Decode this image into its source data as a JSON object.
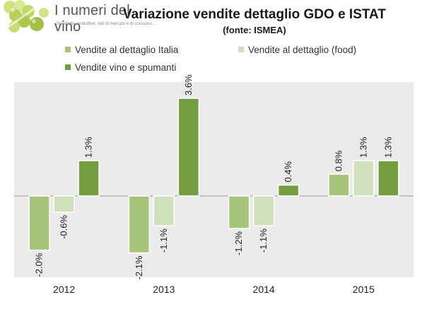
{
  "logo": {
    "title": "I numeri del vino",
    "subtitle": "Statistiche produttive, dati di mercato e di consumo..."
  },
  "colors": {
    "series": [
      "#a6c57a",
      "#cfe0bd",
      "#739d3e"
    ],
    "plot_background": "#ebebeb",
    "baseline": "#999999"
  },
  "chart_data": {
    "type": "bar",
    "title": "Variazione vendite dettaglio GDO e ISTAT",
    "subtitle": "(fonte: ISMEA)",
    "categories": [
      "2012",
      "2013",
      "2014",
      "2015"
    ],
    "series": [
      {
        "name": "Vendite al dettaglio Italia",
        "values": [
          -2.0,
          -2.1,
          -1.2,
          0.8
        ]
      },
      {
        "name": "Vendite al dettaglio (food)",
        "values": [
          -0.6,
          -1.1,
          -1.1,
          1.3
        ]
      },
      {
        "name": "Vendite vino e spumanti",
        "values": [
          1.3,
          3.6,
          0.4,
          1.3
        ]
      }
    ],
    "data_labels": [
      [
        "-2.0%",
        "-2.1%",
        "-1.2%",
        "0.8%"
      ],
      [
        "-0.6%",
        "-1.1%",
        "-1.1%",
        "1.3%"
      ],
      [
        "1.3%",
        "3.6%",
        "0.4%",
        "1.3%"
      ]
    ],
    "ylim": [
      -3.0,
      4.2
    ],
    "legend": "top",
    "grid": false,
    "xlabel": "",
    "ylabel": ""
  }
}
